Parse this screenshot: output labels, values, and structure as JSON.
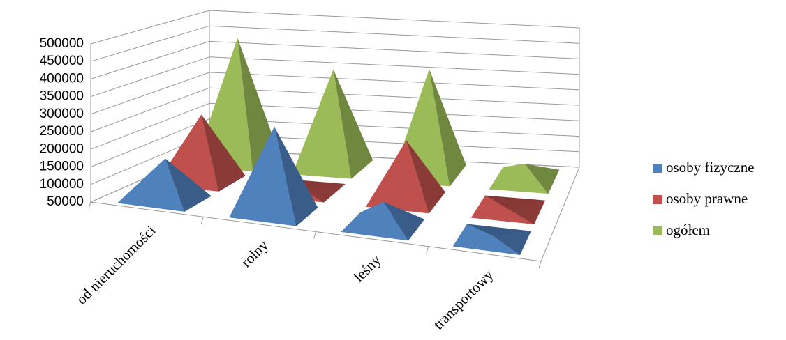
{
  "chart_data": {
    "type": "pyramid3d",
    "categories": [
      "od nieruchomości",
      "rolny",
      "leśny",
      "transportowy"
    ],
    "series": [
      {
        "name": "osoby fizyczne",
        "color": "#4f81bd",
        "values": [
          170000,
          300000,
          120000,
          60000
        ]
      },
      {
        "name": "osoby prawne",
        "color": "#c0504d",
        "values": [
          250000,
          50000,
          230000,
          50000
        ]
      },
      {
        "name": "ogółem",
        "color": "#9bbb59",
        "values": [
          440000,
          360000,
          380000,
          100000
        ]
      }
    ],
    "ylim": [
      50000,
      500000
    ],
    "yticks": [
      50000,
      100000,
      150000,
      200000,
      250000,
      300000,
      350000,
      400000,
      450000,
      500000
    ],
    "grid": true,
    "legend": "right"
  }
}
